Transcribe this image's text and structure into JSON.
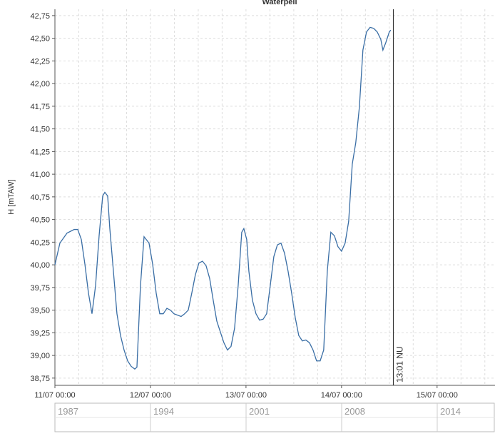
{
  "chart_data": {
    "type": "line",
    "title": "Waterpeil",
    "y_label": "H [mTAW]",
    "series": [
      {
        "name": "H",
        "color": "#3a6ea5",
        "x": [
          0,
          1.25,
          3.04,
          4.84,
          5.73,
          6.63,
          7.52,
          8.42,
          9.31,
          10.21,
          11.1,
          12.0,
          12.54,
          13.25,
          13.79,
          14.69,
          15.58,
          16.48,
          17.37,
          18.27,
          19.16,
          20.06,
          20.6,
          21.49,
          22.39,
          23.64,
          24.54,
          25.43,
          26.33,
          27.22,
          28.12,
          29.01,
          29.91,
          31.7,
          32.6,
          33.49,
          34.39,
          35.28,
          36.18,
          37.07,
          37.97,
          38.87,
          39.76,
          40.66,
          41.55,
          42.45,
          43.34,
          44.24,
          45.13,
          46.03,
          46.93,
          47.46,
          48.18,
          48.72,
          49.61,
          50.51,
          51.4,
          52.3,
          53.19,
          54.09,
          54.99,
          55.88,
          56.78,
          57.67,
          58.57,
          59.46,
          60.36,
          61.25,
          62.15,
          63.04,
          63.94,
          64.84,
          65.73,
          66.63,
          67.52,
          68.42,
          69.31,
          70.21,
          71.1,
          72.0,
          72.9,
          73.79,
          74.69,
          75.58,
          76.48,
          77.37,
          78.27,
          79.16,
          80.06,
          80.96,
          81.85,
          82.39,
          83.1,
          84.0,
          84.36
        ],
        "values": [
          40.0,
          40.24,
          40.35,
          40.39,
          40.39,
          40.28,
          40.01,
          39.69,
          39.46,
          39.77,
          40.32,
          40.76,
          40.8,
          40.76,
          40.4,
          39.93,
          39.46,
          39.22,
          39.06,
          38.94,
          38.88,
          38.85,
          38.87,
          39.77,
          40.31,
          40.24,
          40.01,
          39.69,
          39.46,
          39.46,
          39.52,
          39.5,
          39.46,
          39.43,
          39.46,
          39.5,
          39.69,
          39.89,
          40.02,
          40.04,
          39.99,
          39.85,
          39.61,
          39.38,
          39.26,
          39.14,
          39.06,
          39.1,
          39.3,
          39.77,
          40.36,
          40.4,
          40.28,
          39.93,
          39.61,
          39.46,
          39.39,
          39.4,
          39.46,
          39.77,
          40.09,
          40.22,
          40.24,
          40.13,
          39.93,
          39.69,
          39.42,
          39.22,
          39.16,
          39.17,
          39.14,
          39.06,
          38.94,
          38.94,
          39.06,
          39.93,
          40.36,
          40.32,
          40.2,
          40.15,
          40.24,
          40.48,
          41.11,
          41.35,
          41.74,
          42.37,
          42.57,
          42.62,
          42.61,
          42.57,
          42.49,
          42.37,
          42.45,
          42.57,
          42.59
        ]
      }
    ],
    "xlim": [
      0,
      110.55
    ],
    "xticks": [
      {
        "value": 0,
        "label": "11/07 00:00"
      },
      {
        "value": 24,
        "label": "12/07 00:00"
      },
      {
        "value": 48,
        "label": "13/07 00:00"
      },
      {
        "value": 72,
        "label": "14/07 00:00"
      },
      {
        "value": 96,
        "label": "15/07 00:00"
      }
    ],
    "ylim": [
      38.67,
      42.82
    ],
    "yticks": [
      {
        "value": 38.75,
        "label": "38,75"
      },
      {
        "value": 39,
        "label": "39,00"
      },
      {
        "value": 39.25,
        "label": "39,25"
      },
      {
        "value": 39.5,
        "label": "39,50"
      },
      {
        "value": 39.75,
        "label": "39,75"
      },
      {
        "value": 40,
        "label": "40,00"
      },
      {
        "value": 40.25,
        "label": "40,25"
      },
      {
        "value": 40.5,
        "label": "40,50"
      },
      {
        "value": 40.75,
        "label": "40,75"
      },
      {
        "value": 41,
        "label": "41,00"
      },
      {
        "value": 41.25,
        "label": "41,25"
      },
      {
        "value": 41.5,
        "label": "41,50"
      },
      {
        "value": 41.75,
        "label": "41,75"
      },
      {
        "value": 42,
        "label": "42,00"
      },
      {
        "value": 42.25,
        "label": "42,25"
      },
      {
        "value": 42.5,
        "label": "42,50"
      },
      {
        "value": 42.75,
        "label": "42,75"
      }
    ],
    "grid": true,
    "marker": {
      "x": 85.02,
      "label": "13:01  NU"
    }
  },
  "navigator": {
    "labels": [
      "1987",
      "1994",
      "2001",
      "2008",
      "2014"
    ]
  }
}
